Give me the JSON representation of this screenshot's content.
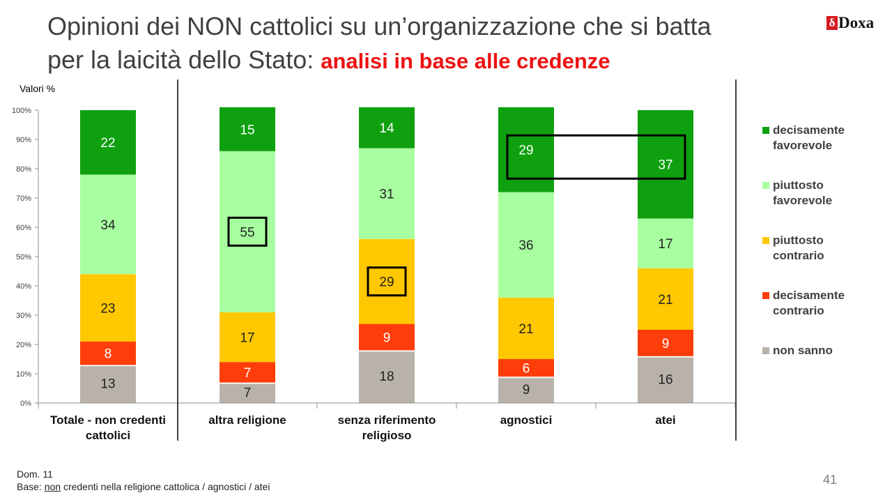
{
  "title": {
    "main_line1": "Opinioni dei NON cattolici su un’organizzazione che si batta",
    "main_line2": "per la laicità dello Stato: ",
    "accent": "analisi in base alle credenze"
  },
  "logo": {
    "mark": "δ",
    "name": "Doxa"
  },
  "footer": {
    "line1": "Dom. 11",
    "line2_prefix": "Base: ",
    "line2_underlined": "non",
    "line2_suffix": " credenti nella religione cattolica / agnostici / atei"
  },
  "page_number": "41",
  "colors": {
    "decisamente_favorevole": "#0fa00f",
    "piuttosto_favorevole": "#a8ffa0",
    "piuttosto_contrario": "#ffc800",
    "decisamente_contrario": "#ff3d0a",
    "non_sanno": "#b8b2ab"
  },
  "chart_data": {
    "type": "bar",
    "stacked": true,
    "percent": true,
    "units_label": "Valori %",
    "ylim": [
      0,
      100
    ],
    "yticks": [
      "0%",
      "10%",
      "20%",
      "30%",
      "40%",
      "50%",
      "60%",
      "70%",
      "80%",
      "90%",
      "100%"
    ],
    "categories": [
      [
        "Totale - non credenti",
        "cattolici"
      ],
      [
        "altra religione"
      ],
      [
        "senza riferimento",
        "religioso"
      ],
      [
        "agnostici"
      ],
      [
        "atei"
      ]
    ],
    "series": [
      {
        "name": "non sanno",
        "color": "#b8b2ab",
        "values": [
          13,
          7,
          18,
          9,
          16
        ]
      },
      {
        "name": "decisamente contrario",
        "color": "#ff3d0a",
        "values": [
          8,
          7,
          9,
          6,
          9
        ]
      },
      {
        "name": "piuttosto contrario",
        "color": "#ffc800",
        "values": [
          23,
          17,
          29,
          21,
          21
        ]
      },
      {
        "name": "piuttosto favorevole",
        "color": "#a8ffa0",
        "values": [
          34,
          55,
          31,
          36,
          17
        ]
      },
      {
        "name": "decisamente favorevole",
        "color": "#0fa00f",
        "values": [
          22,
          15,
          14,
          29,
          37
        ]
      }
    ],
    "legend": {
      "position": "right",
      "items": [
        {
          "label": [
            "decisamente",
            "favorevole"
          ],
          "color": "#0fa00f"
        },
        {
          "label": [
            "piuttosto",
            "favorevole"
          ],
          "color": "#a8ffa0"
        },
        {
          "label": [
            "piuttosto",
            "contrario"
          ],
          "color": "#ffc800"
        },
        {
          "label": [
            "decisamente",
            "contrario"
          ],
          "color": "#ff3d0a"
        },
        {
          "label": [
            "non sanno"
          ],
          "color": "#b8b2ab"
        }
      ]
    },
    "highlights": [
      {
        "category": 1,
        "series": 3
      },
      {
        "category": 2,
        "series": 2
      },
      {
        "categories": [
          3,
          4
        ],
        "series": 4
      }
    ]
  }
}
